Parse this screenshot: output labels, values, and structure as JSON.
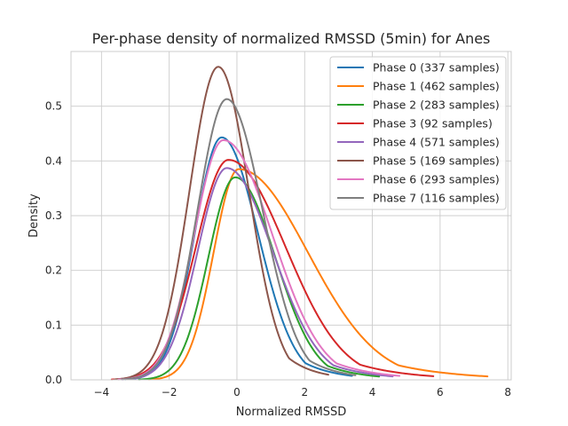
{
  "chart_data": {
    "type": "line",
    "title": "Per-phase density of normalized RMSSD (5min) for Anes",
    "xlabel": "Normalized RMSSD",
    "ylabel": "Density",
    "xlim": [
      -4.9,
      8.1
    ],
    "ylim": [
      0,
      0.6
    ],
    "xticks": [
      -4,
      -2,
      0,
      2,
      4,
      6,
      8
    ],
    "xtick_labels": [
      "−4",
      "−2",
      "0",
      "2",
      "4",
      "6",
      "8"
    ],
    "yticks": [
      0.0,
      0.1,
      0.2,
      0.3,
      0.4,
      0.5
    ],
    "ytick_labels": [
      "0.0",
      "0.1",
      "0.2",
      "0.3",
      "0.4",
      "0.5"
    ],
    "grid": true,
    "legend_position": "top-right",
    "series": [
      {
        "name": "Phase 0 (337 samples)",
        "color": "#1f77b4",
        "peak_x": -0.45,
        "peak_y": 0.443,
        "x_min": -3.3,
        "x_max": 3.4
      },
      {
        "name": "Phase 1 (462 samples)",
        "color": "#ff7f0e",
        "peak_x": 0.05,
        "peak_y": 0.385,
        "x_min": -2.6,
        "x_max": 7.4
      },
      {
        "name": "Phase 2 (283 samples)",
        "color": "#2ca02c",
        "peak_x": -0.05,
        "peak_y": 0.37,
        "x_min": -2.9,
        "x_max": 4.2
      },
      {
        "name": "Phase 3 (92 samples)",
        "color": "#d62728",
        "peak_x": -0.25,
        "peak_y": 0.402,
        "x_min": -3.7,
        "x_max": 5.8
      },
      {
        "name": "Phase 4 (571 samples)",
        "color": "#9467bd",
        "peak_x": -0.3,
        "peak_y": 0.387,
        "x_min": -3.4,
        "x_max": 4.6
      },
      {
        "name": "Phase 5 (169 samples)",
        "color": "#8c564b",
        "peak_x": -0.55,
        "peak_y": 0.572,
        "x_min": -3.6,
        "x_max": 2.7
      },
      {
        "name": "Phase 6 (293 samples)",
        "color": "#e377c2",
        "peak_x": -0.4,
        "peak_y": 0.438,
        "x_min": -3.5,
        "x_max": 4.8
      },
      {
        "name": "Phase 7 (116 samples)",
        "color": "#7f7f7f",
        "peak_x": -0.3,
        "peak_y": 0.513,
        "x_min": -3.4,
        "x_max": 3.5
      }
    ]
  }
}
